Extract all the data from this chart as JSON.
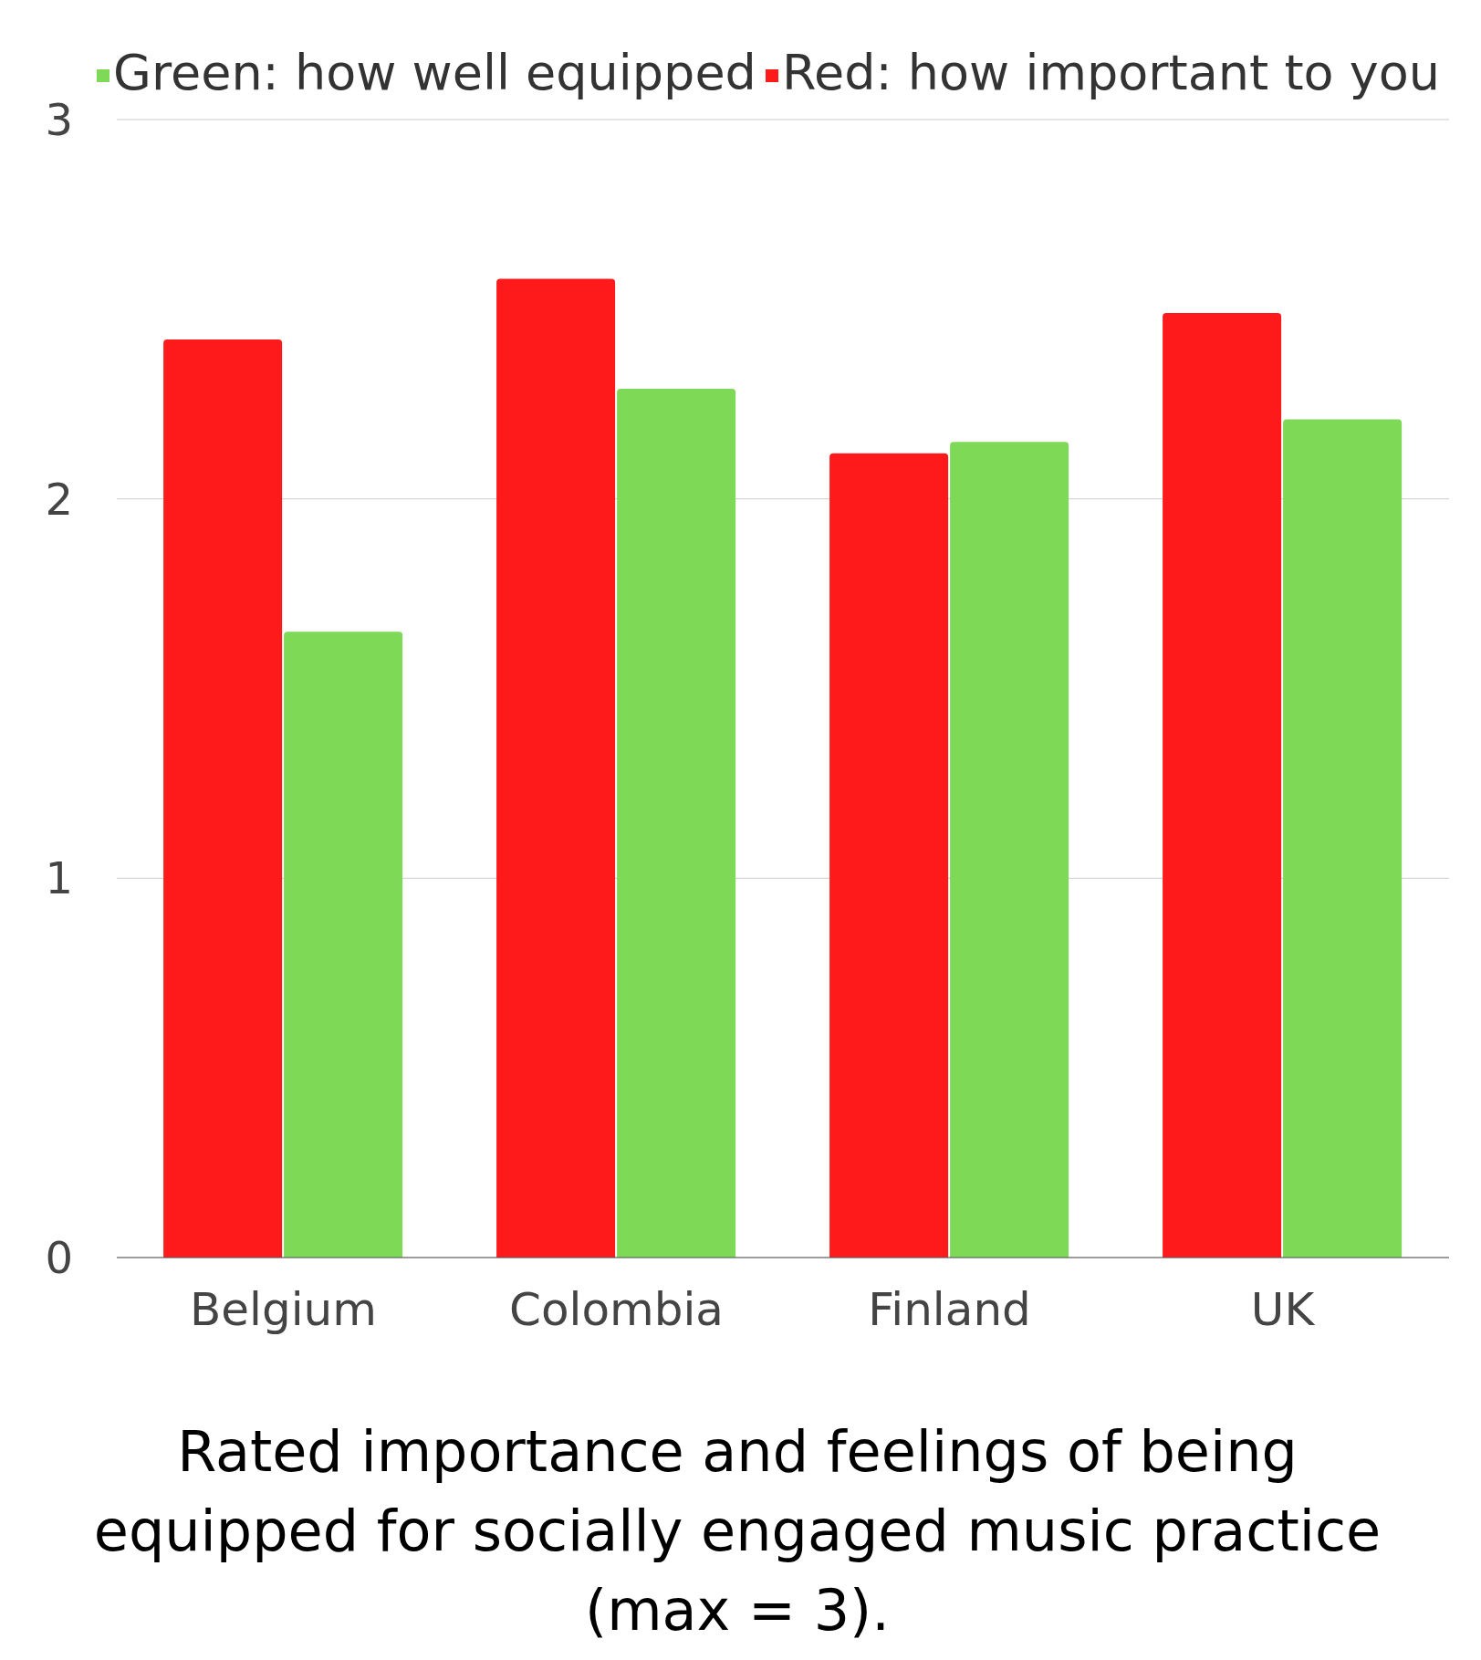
{
  "chart_data": {
    "type": "bar",
    "title": "Rated importance and feelings of being equipped for socially engaged music practice (max = 3).",
    "categories": [
      "Belgium",
      "Colombia",
      "Finland",
      "UK"
    ],
    "series": [
      {
        "name": "Red: how important to you",
        "color": "#fe1a1a",
        "values": [
          2.42,
          2.58,
          2.12,
          2.49
        ]
      },
      {
        "name": "Green: how well equipped",
        "color": "#7ed957",
        "values": [
          1.65,
          2.29,
          2.15,
          2.21
        ]
      }
    ],
    "ylim": [
      0,
      3
    ],
    "yticks": [
      0,
      1,
      2,
      3
    ],
    "grid": "y",
    "legend": "top right"
  }
}
